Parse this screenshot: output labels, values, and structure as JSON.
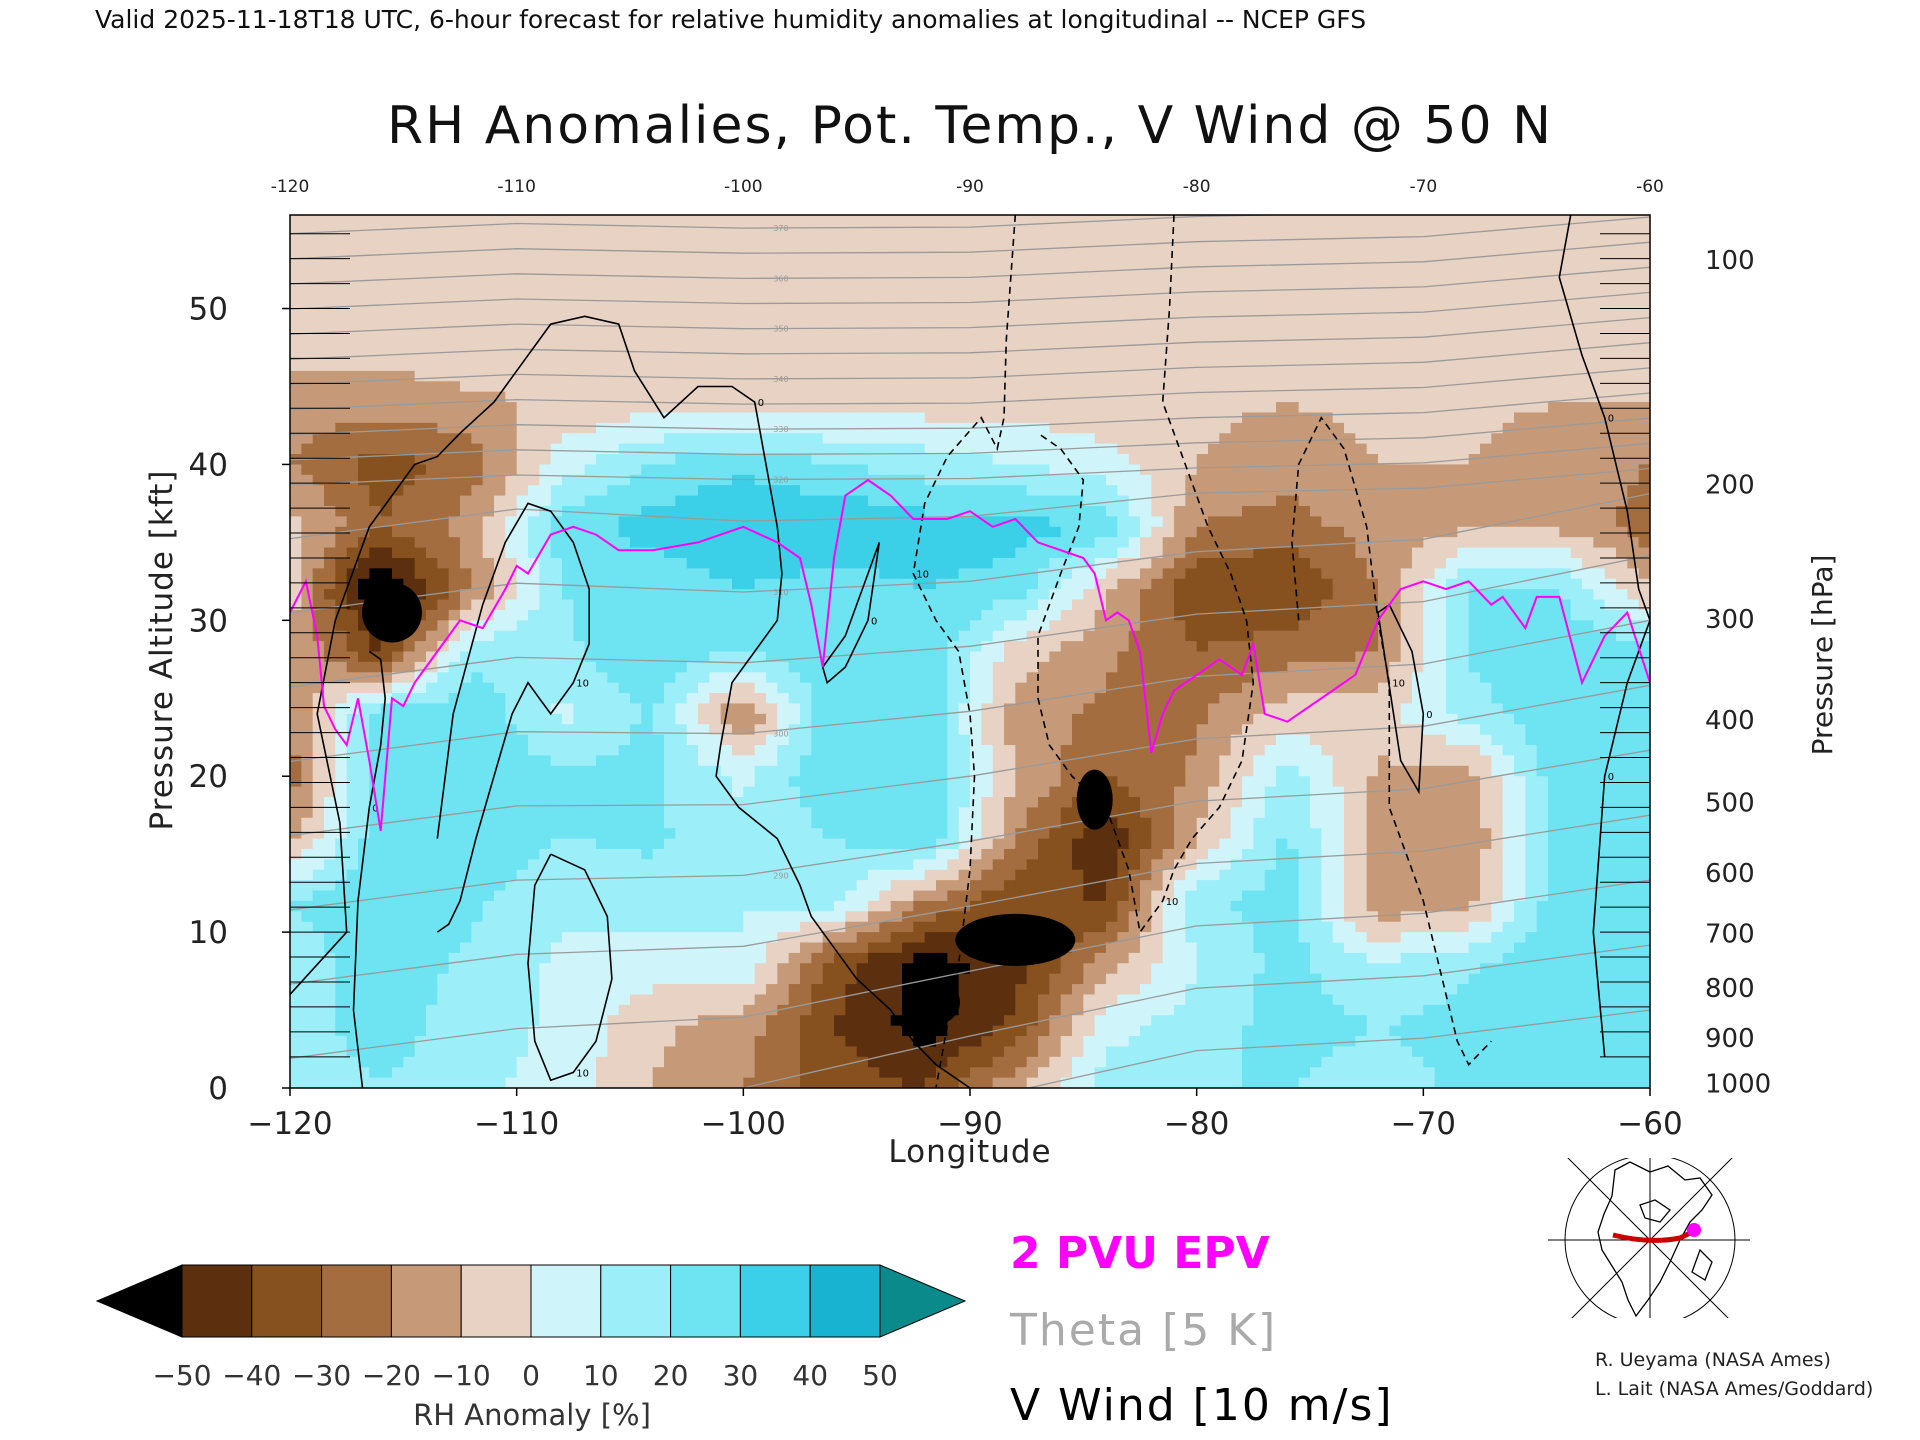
{
  "header": {
    "valid_line": "Valid 2025-11-18T18 UTC, 6-hour forecast for relative humidity anomalies at longitudinal -- NCEP GFS",
    "title": "RH Anomalies, Pot. Temp., V Wind @ 50 N"
  },
  "chart_data": {
    "type": "heatmap",
    "title": "RH Anomalies, Pot. Temp., V Wind @ 50 N",
    "xlabel": "Longitude",
    "ylabel": "Pressure Altitude [kft]",
    "y2label": "Pressure [hPa]",
    "xlim": [
      -120,
      -60
    ],
    "ylim": [
      0,
      56
    ],
    "grid": false,
    "x_ticks": [
      "-120",
      "-110",
      "-100",
      "-90",
      "-80",
      "-70",
      "-60"
    ],
    "x_ticks_top": [
      "-120",
      "-110",
      "-100",
      "-90",
      "-80",
      "-70",
      "-60"
    ],
    "y_ticks": [
      {
        "value": 0,
        "label": "0"
      },
      {
        "value": 10,
        "label": "10"
      },
      {
        "value": 20,
        "label": "20"
      },
      {
        "value": 30,
        "label": "30"
      },
      {
        "value": 40,
        "label": "40"
      },
      {
        "value": 50,
        "label": "50"
      }
    ],
    "y2_ticks": [
      {
        "alt": 0.3,
        "label": "1000"
      },
      {
        "alt": 3.2,
        "label": "900"
      },
      {
        "alt": 6.4,
        "label": "800"
      },
      {
        "alt": 9.9,
        "label": "700"
      },
      {
        "alt": 13.8,
        "label": "600"
      },
      {
        "alt": 18.3,
        "label": "500"
      },
      {
        "alt": 23.6,
        "label": "400"
      },
      {
        "alt": 30.1,
        "label": "300"
      },
      {
        "alt": 38.7,
        "label": "200"
      },
      {
        "alt": 53.1,
        "label": "100"
      }
    ],
    "colorbar": {
      "label": "RH Anomaly [%]",
      "tick_labels": [
        "-50",
        "-40",
        "-30",
        "-20",
        "-10",
        "0",
        "10",
        "20",
        "30",
        "40",
        "50"
      ],
      "colors": [
        "#2a1406",
        "#5c300f",
        "#86501f",
        "#a46d3f",
        "#c69a78",
        "#e8d2c4",
        "#cff5fb",
        "#9ceef8",
        "#6ee3f2",
        "#3ccfe8",
        "#17b3d0",
        "#09809c"
      ],
      "under_color": "#000000",
      "over_color": "#0a8a8a"
    },
    "rh_field": {
      "lons": [
        -120,
        -116,
        -112,
        -108,
        -104,
        -100,
        -96,
        -92,
        -88,
        -84,
        -80,
        -76,
        -72,
        -68,
        -64,
        -60
      ],
      "alts": [
        0,
        4,
        8,
        12,
        16,
        20,
        24,
        28,
        32,
        36,
        40,
        44,
        48,
        52,
        56
      ],
      "values": [
        [
          12,
          20,
          12,
          6,
          -10,
          -20,
          -35,
          -40,
          -12,
          15,
          20,
          20,
          15,
          22,
          25,
          20
        ],
        [
          15,
          25,
          15,
          8,
          -8,
          -15,
          -40,
          -55,
          -38,
          6,
          15,
          24,
          20,
          24,
          28,
          24
        ],
        [
          15,
          25,
          18,
          8,
          5,
          10,
          -35,
          -55,
          -45,
          -15,
          10,
          24,
          10,
          18,
          28,
          26
        ],
        [
          20,
          28,
          22,
          12,
          15,
          10,
          15,
          -20,
          -38,
          -40,
          18,
          24,
          -18,
          -15,
          28,
          28
        ],
        [
          -15,
          28,
          28,
          20,
          22,
          12,
          20,
          30,
          -20,
          -50,
          -10,
          22,
          -15,
          -20,
          28,
          26
        ],
        [
          -25,
          28,
          28,
          22,
          22,
          8,
          30,
          28,
          -10,
          -30,
          -18,
          15,
          -12,
          -15,
          28,
          26
        ],
        [
          -20,
          25,
          28,
          8,
          22,
          -22,
          30,
          28,
          -15,
          -22,
          -22,
          -5,
          -5,
          15,
          28,
          26
        ],
        [
          -10,
          -40,
          15,
          18,
          28,
          20,
          30,
          30,
          -5,
          -18,
          -30,
          -25,
          -20,
          22,
          28,
          24
        ],
        [
          -5,
          -65,
          -20,
          20,
          22,
          30,
          25,
          30,
          25,
          -8,
          -38,
          -40,
          -20,
          20,
          20,
          -10
        ],
        [
          -5,
          -30,
          -15,
          25,
          35,
          40,
          40,
          35,
          35,
          28,
          -20,
          -25,
          -15,
          -12,
          -12,
          -25
        ],
        [
          -20,
          -35,
          -25,
          5,
          20,
          28,
          20,
          15,
          10,
          5,
          -10,
          -15,
          -10,
          -10,
          -15,
          -20
        ],
        [
          -15,
          -15,
          -12,
          -8,
          -5,
          -5,
          -5,
          -5,
          -5,
          -8,
          -8,
          -10,
          -8,
          -8,
          -10,
          -10
        ],
        [
          -5,
          -5,
          -3,
          -3,
          -2,
          -2,
          -2,
          -2,
          -2,
          -2,
          -3,
          -3,
          -3,
          -3,
          -3,
          -3
        ],
        [
          -2,
          -2,
          -2,
          -2,
          -2,
          -2,
          -2,
          -2,
          -2,
          -2,
          -2,
          -2,
          -2,
          -2,
          -2,
          -2
        ],
        [
          -1,
          -1,
          -1,
          -1,
          -1,
          -1,
          -1,
          -1,
          -1,
          -1,
          -1,
          -1,
          -1,
          -1,
          -1,
          -1
        ]
      ]
    },
    "theta_contours": {
      "levels": [
        270,
        275,
        280,
        285,
        290,
        295,
        300,
        305,
        310,
        315,
        320,
        325,
        330,
        335,
        340,
        345,
        350,
        355,
        360,
        365,
        370,
        375,
        380,
        385,
        390,
        395,
        400,
        405,
        410,
        415,
        420,
        425,
        430,
        435,
        440
      ],
      "labeled": [
        "270",
        "290",
        "300",
        "310",
        "320",
        "330",
        "340",
        "350",
        "360",
        "370",
        "380",
        "390",
        "400",
        "410",
        "420"
      ],
      "lons": [
        -120,
        -110,
        -100,
        -90,
        -80,
        -70,
        -60
      ],
      "theta_at_base": [
        278,
        276,
        275,
        271,
        267,
        266,
        264
      ],
      "rate_low": [
        1.05,
        1.05,
        1.1,
        1.2,
        1.25,
        1.25,
        1.2
      ],
      "rate_high": 3.1
    },
    "epv_2pvu": {
      "lon": [
        -120,
        -119.3,
        -118.8,
        -118.5,
        -118,
        -117.5,
        -117,
        -116.5,
        -116,
        -115.5,
        -115,
        -114.5,
        -113.5,
        -112.5,
        -111.5,
        -110.5,
        -110,
        -109.5,
        -108.5,
        -107.5,
        -106.5,
        -105.5,
        -104,
        -102,
        -100,
        -98.5,
        -97.5,
        -97,
        -96.5,
        -96,
        -95.5,
        -95,
        -94.5,
        -93.5,
        -92.5,
        -91,
        -90,
        -89,
        -88,
        -87,
        -86,
        -85,
        -84.5,
        -84,
        -83.5,
        -83,
        -82.5,
        -82,
        -81.5,
        -81,
        -80,
        -79,
        -78,
        -77.5,
        -77,
        -76,
        -75,
        -74,
        -73,
        -72,
        -71.5,
        -71,
        -70,
        -69,
        -68,
        -67,
        -66.5,
        -65.5,
        -65,
        -64,
        -63,
        -62,
        -61,
        -60
      ],
      "alt": [
        30.5,
        32.5,
        29,
        24.5,
        23,
        22,
        25,
        21,
        16.5,
        25,
        24.5,
        26,
        28,
        30,
        29.5,
        32,
        33.5,
        33,
        35.5,
        36,
        35.5,
        34.5,
        34.5,
        35,
        36,
        35,
        34,
        31,
        27,
        34,
        38,
        38.5,
        39,
        38,
        36.5,
        36.5,
        37,
        36,
        36.5,
        35,
        34.5,
        34,
        33,
        30,
        30.5,
        30,
        28,
        21.5,
        24,
        25.5,
        26.5,
        27.5,
        26.5,
        28.5,
        24,
        23.5,
        24.5,
        25.5,
        26.5,
        30,
        31,
        32,
        32.5,
        32,
        32.5,
        31,
        31.5,
        29.5,
        31.5,
        31.5,
        26,
        29,
        30.5,
        26
      ]
    },
    "v_wind_contours": [
      {
        "level": 0,
        "style": "solid",
        "lon": [
          -120,
          -117.5,
          -117.8,
          -118.8,
          -118,
          -116.5,
          -114.5,
          -113.5,
          -112.5,
          -111,
          -109.5,
          -108.5,
          -107,
          -105.5,
          -104.8,
          -103.5,
          -102,
          -100.5,
          -99.5,
          -99,
          -98.5,
          -98.3,
          -98.5,
          -99.5,
          -100.5,
          -101,
          -101.2,
          -100.2,
          -98.5,
          -97.5,
          -97,
          -96,
          -95,
          -93.5,
          -92.5,
          -91.5,
          -90
        ],
        "alt": [
          6,
          10,
          17,
          24,
          30,
          36,
          40,
          40.5,
          42,
          44,
          47,
          49,
          49.5,
          49,
          46,
          43,
          45,
          45,
          44,
          40,
          36,
          33,
          30,
          28,
          26,
          22,
          20,
          18,
          16,
          13,
          11,
          9,
          7,
          5,
          3,
          1.5,
          0
        ]
      },
      {
        "level": 0,
        "style": "solid",
        "lon": [
          -116.5,
          -116,
          -115.8,
          -116,
          -116.5,
          -117,
          -117.2,
          -116.8
        ],
        "alt": [
          28,
          27.5,
          25,
          22,
          18,
          12,
          5,
          0
        ]
      },
      {
        "level": 10,
        "style": "solid",
        "lon": [
          -113.5,
          -113,
          -112.5,
          -111.8,
          -111,
          -110.2,
          -109.5,
          -109,
          -108.5,
          -107.5,
          -106.8,
          -106.8,
          -107.5,
          -108.5,
          -109.5,
          -110.5,
          -111.5,
          -112.8,
          -113.5
        ],
        "alt": [
          10,
          10.5,
          12,
          16,
          20,
          24,
          26,
          25,
          24,
          26,
          28.5,
          32,
          35,
          37,
          37.5,
          35,
          31,
          24,
          16
        ]
      },
      {
        "level": 10,
        "style": "solid",
        "lon": [
          -108.5,
          -107,
          -106,
          -105.8,
          -106.5,
          -107.5,
          -108.5,
          -109.2,
          -109.5,
          -109.2,
          -108.5
        ],
        "alt": [
          15,
          14,
          11,
          7,
          3,
          1,
          0.5,
          3,
          8,
          13,
          15
        ]
      },
      {
        "level": 0,
        "style": "solid",
        "lon": [
          -96.5,
          -95.5,
          -94.5,
          -94,
          -94.5,
          -95.5,
          -96.3,
          -96.5
        ],
        "alt": [
          27,
          29,
          33,
          35,
          30,
          27,
          26,
          27
        ]
      },
      {
        "level": 0,
        "style": "solid",
        "lon": [
          -63.5,
          -64,
          -63,
          -62,
          -61,
          -60.5,
          -60
        ],
        "alt": [
          56,
          52,
          47,
          43,
          37,
          32,
          30
        ]
      },
      {
        "level": 0,
        "style": "solid",
        "lon": [
          -72,
          -71.5,
          -70.5,
          -70,
          -70.2,
          -71,
          -72
        ],
        "alt": [
          30.5,
          31,
          28,
          24,
          19,
          21,
          30.5
        ]
      },
      {
        "level": 0,
        "style": "solid",
        "lon": [
          -60,
          -61,
          -62,
          -62.5,
          -62
        ],
        "alt": [
          30,
          26,
          20,
          10,
          2
        ]
      },
      {
        "level": 10,
        "style": "dashed",
        "lon": [
          -88,
          -88.2,
          -88.4,
          -88.5,
          -88.8,
          -89.5,
          -91,
          -92,
          -92.5,
          -91.5,
          -90.5,
          -90,
          -89.8,
          -90,
          -90.5,
          -91,
          -91.5
        ],
        "alt": [
          56,
          52,
          48,
          43,
          41,
          43,
          40.5,
          37.5,
          33,
          30,
          28,
          24,
          20,
          14,
          8,
          4,
          0
        ]
      },
      {
        "level": 10,
        "style": "dashed",
        "lon": [
          -81,
          -81.2,
          -81.5,
          -80.5,
          -79.5,
          -78.5,
          -77.8,
          -77.5,
          -78,
          -79,
          -80.2,
          -81,
          -81.5,
          -82.5,
          -83,
          -84,
          -85.5,
          -86.5,
          -87,
          -87,
          -86,
          -85.2,
          -85,
          -86,
          -87
        ],
        "alt": [
          56,
          50,
          44,
          40,
          36,
          33,
          30,
          26,
          21,
          18,
          16,
          14,
          12,
          10,
          14,
          18,
          20,
          22,
          25,
          29,
          33,
          36,
          39,
          41,
          42
        ]
      },
      {
        "level": 10,
        "style": "dashed",
        "lon": [
          -75.5,
          -75.8,
          -75.5,
          -74.5,
          -73.5,
          -72.5,
          -72,
          -71.5,
          -71.5,
          -70,
          -69,
          -68.5,
          -68,
          -67
        ],
        "alt": [
          30,
          35,
          40,
          43,
          41,
          36,
          30,
          26,
          18,
          12,
          6,
          3,
          1.5,
          3
        ]
      }
    ],
    "v_wind_labels": [
      "0",
      "10"
    ]
  },
  "legend": {
    "epv": "2 PVU EPV",
    "theta": "Theta [5 K]",
    "vwind": "V Wind [10 m/s]",
    "colors": {
      "epv": "#ff00ff",
      "theta": "#aaaaaa",
      "vwind": "#000000"
    }
  },
  "inset_map": {
    "path_color": "#cc0000",
    "marker_color": "#ff00ff"
  },
  "credits": {
    "line1": "R. Ueyama (NASA Ames)",
    "line2": "L. Lait (NASA Ames/Goddard)"
  }
}
